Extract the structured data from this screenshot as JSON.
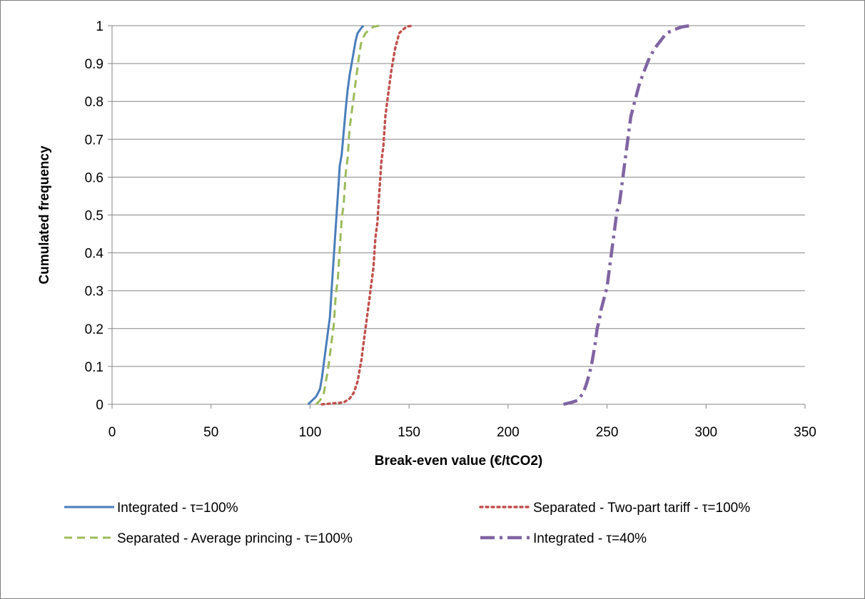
{
  "chart_data": {
    "type": "line",
    "title": "",
    "xlabel": "Break-even value (€/tCO2)",
    "ylabel": "Cumulated frequency",
    "xlim": [
      0,
      350
    ],
    "ylim": [
      0,
      1
    ],
    "x_ticks": [
      "0",
      "50",
      "100",
      "150",
      "200",
      "250",
      "300",
      "350"
    ],
    "y_ticks": [
      "0",
      "0.1",
      "0.2",
      "0.3",
      "0.4",
      "0.5",
      "0.6",
      "0.7",
      "0.8",
      "0.9",
      "1"
    ],
    "grid": "horizontal major gridlines",
    "legend_position": "bottom",
    "series": [
      {
        "name": "Integrated - τ=100%",
        "color": "#4a7ebb",
        "style": "solid",
        "points": [
          [
            99,
            0
          ],
          [
            101,
            0.01
          ],
          [
            103,
            0.02
          ],
          [
            105,
            0.04
          ],
          [
            106,
            0.07
          ],
          [
            107,
            0.11
          ],
          [
            108,
            0.15
          ],
          [
            109,
            0.19
          ],
          [
            110,
            0.23
          ],
          [
            110.5,
            0.27
          ],
          [
            111,
            0.31
          ],
          [
            111.5,
            0.35
          ],
          [
            112,
            0.39
          ],
          [
            112.5,
            0.43
          ],
          [
            113,
            0.47
          ],
          [
            113.5,
            0.51
          ],
          [
            114,
            0.55
          ],
          [
            114.5,
            0.59
          ],
          [
            115,
            0.63
          ],
          [
            116,
            0.66
          ],
          [
            117,
            0.72
          ],
          [
            118,
            0.78
          ],
          [
            119,
            0.83
          ],
          [
            120,
            0.87
          ],
          [
            121,
            0.9
          ],
          [
            122,
            0.93
          ],
          [
            123,
            0.96
          ],
          [
            124,
            0.98
          ],
          [
            126,
            0.995
          ],
          [
            127,
            1
          ]
        ]
      },
      {
        "name": "Separated - Two-part tariff - τ=100%",
        "color": "#c0504d",
        "style": "dotted",
        "points": [
          [
            106,
            0
          ],
          [
            117,
            0.005
          ],
          [
            120,
            0.015
          ],
          [
            122,
            0.03
          ],
          [
            124,
            0.06
          ],
          [
            125,
            0.09
          ],
          [
            126,
            0.12
          ],
          [
            127,
            0.16
          ],
          [
            128,
            0.2
          ],
          [
            129,
            0.24
          ],
          [
            130,
            0.28
          ],
          [
            131,
            0.32
          ],
          [
            132,
            0.36
          ],
          [
            132.5,
            0.4
          ],
          [
            133,
            0.44
          ],
          [
            134,
            0.48
          ],
          [
            134.5,
            0.52
          ],
          [
            135,
            0.56
          ],
          [
            135.5,
            0.6
          ],
          [
            136,
            0.64
          ],
          [
            137,
            0.68
          ],
          [
            137.5,
            0.72
          ],
          [
            138,
            0.76
          ],
          [
            139,
            0.8
          ],
          [
            140,
            0.84
          ],
          [
            141,
            0.88
          ],
          [
            142,
            0.91
          ],
          [
            143,
            0.94
          ],
          [
            144,
            0.96
          ],
          [
            145,
            0.98
          ],
          [
            147,
            0.99
          ],
          [
            149,
            0.998
          ],
          [
            152,
            1
          ]
        ]
      },
      {
        "name": "Separated - Average princing - τ=100%",
        "color": "#9bbb59",
        "style": "dashed",
        "points": [
          [
            103,
            0
          ],
          [
            105,
            0.01
          ],
          [
            107,
            0.03
          ],
          [
            108,
            0.06
          ],
          [
            109,
            0.09
          ],
          [
            110,
            0.13
          ],
          [
            111,
            0.17
          ],
          [
            112,
            0.21
          ],
          [
            112.5,
            0.25
          ],
          [
            113,
            0.29
          ],
          [
            114,
            0.33
          ],
          [
            114.5,
            0.37
          ],
          [
            115,
            0.41
          ],
          [
            115.5,
            0.45
          ],
          [
            116,
            0.49
          ],
          [
            117,
            0.53
          ],
          [
            117.5,
            0.57
          ],
          [
            118,
            0.61
          ],
          [
            119,
            0.65
          ],
          [
            119.5,
            0.69
          ],
          [
            120,
            0.73
          ],
          [
            121,
            0.77
          ],
          [
            122,
            0.81
          ],
          [
            123,
            0.85
          ],
          [
            124,
            0.89
          ],
          [
            125,
            0.93
          ],
          [
            126,
            0.96
          ],
          [
            128,
            0.98
          ],
          [
            130,
            0.99
          ],
          [
            132,
            0.997
          ],
          [
            135,
            1
          ]
        ]
      },
      {
        "name": "Integrated - τ=40%",
        "color": "#8064a2",
        "style": "dashdot",
        "points": [
          [
            228,
            0
          ],
          [
            232,
            0.005
          ],
          [
            235,
            0.01
          ],
          [
            238,
            0.03
          ],
          [
            240,
            0.06
          ],
          [
            242,
            0.1
          ],
          [
            243,
            0.13
          ],
          [
            244,
            0.16
          ],
          [
            245,
            0.2
          ],
          [
            246,
            0.22
          ],
          [
            247,
            0.25
          ],
          [
            248,
            0.27
          ],
          [
            249,
            0.29
          ],
          [
            250,
            0.31
          ],
          [
            251,
            0.35
          ],
          [
            252,
            0.39
          ],
          [
            253,
            0.43
          ],
          [
            254,
            0.47
          ],
          [
            255,
            0.51
          ],
          [
            256,
            0.52
          ],
          [
            257,
            0.56
          ],
          [
            258,
            0.6
          ],
          [
            259,
            0.64
          ],
          [
            260,
            0.68
          ],
          [
            261,
            0.72
          ],
          [
            262,
            0.76
          ],
          [
            264,
            0.8
          ],
          [
            266,
            0.84
          ],
          [
            268,
            0.87
          ],
          [
            271,
            0.91
          ],
          [
            274,
            0.94
          ],
          [
            277,
            0.96
          ],
          [
            280,
            0.98
          ],
          [
            284,
            0.99
          ],
          [
            288,
            0.997
          ],
          [
            292,
            1
          ]
        ]
      }
    ]
  }
}
